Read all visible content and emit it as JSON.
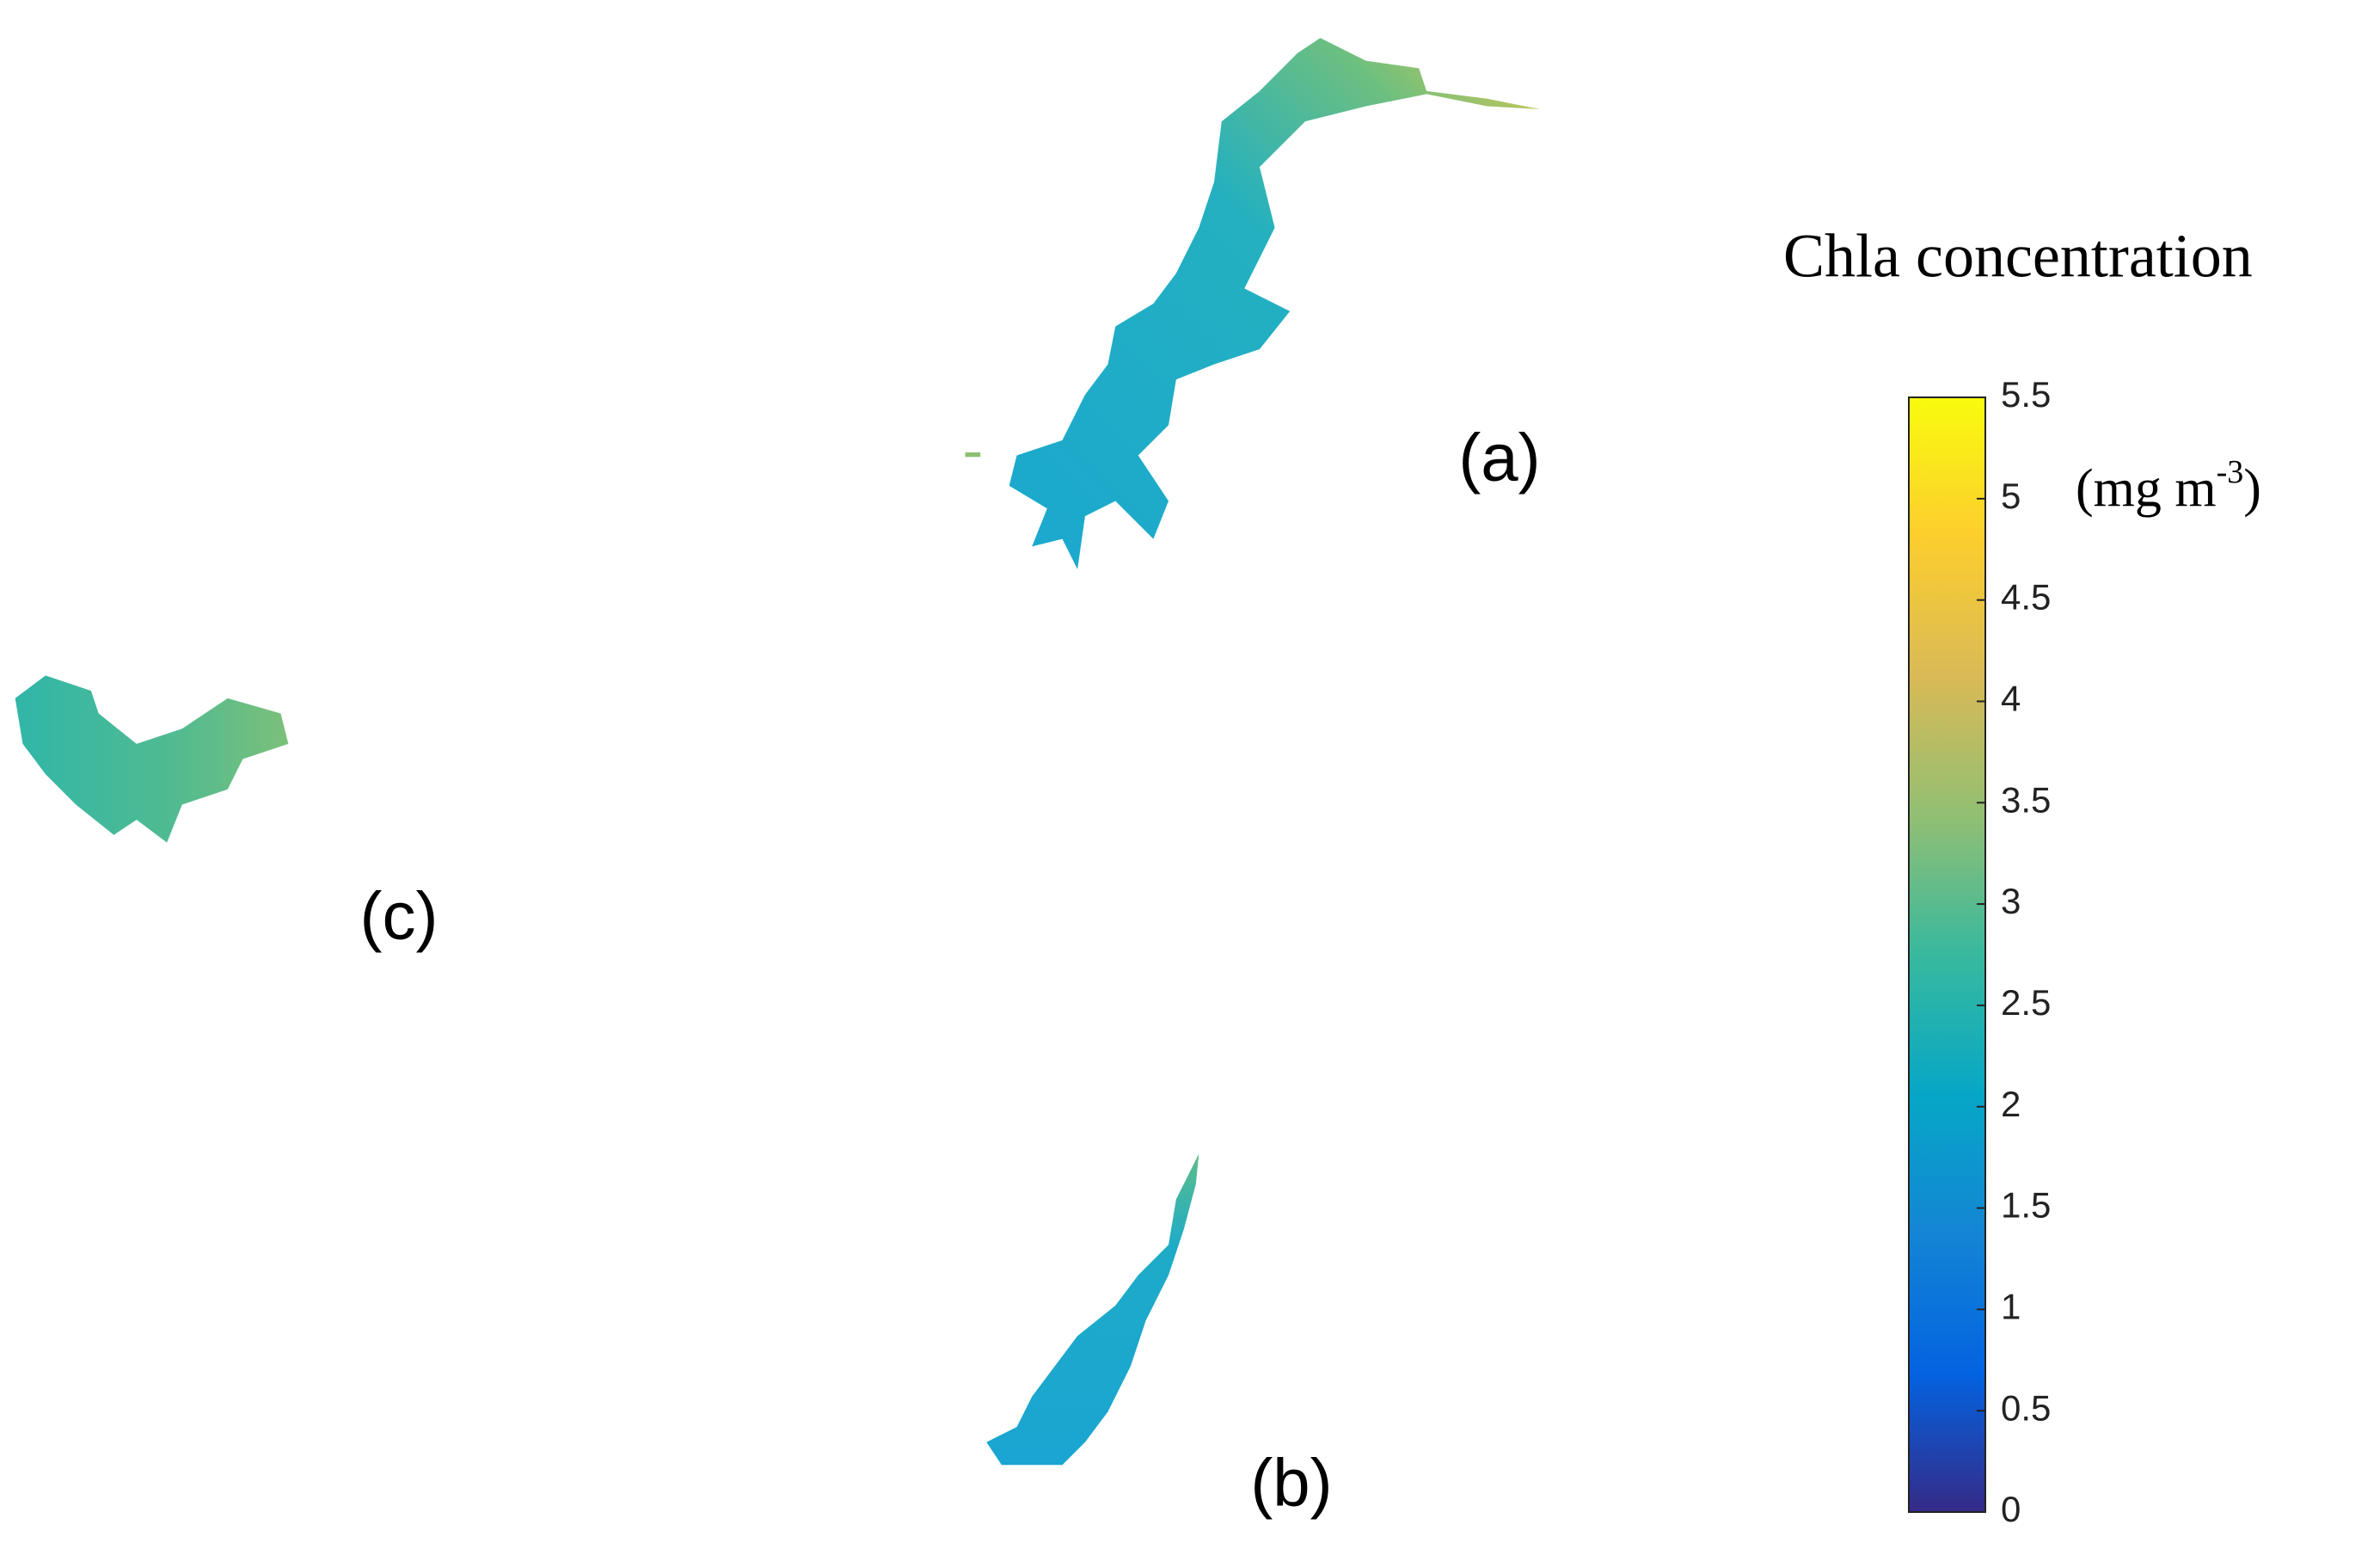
{
  "map": {
    "labels": [
      "(a)",
      "(b)",
      "(c)"
    ],
    "colorbar": {
      "title": "Chla concentration",
      "unit": [
        "(mg m",
        "-3",
        ")"
      ],
      "lim": [
        0,
        5.5
      ],
      "ticks": [
        0,
        0.5,
        1,
        1.5,
        2,
        2.5,
        3,
        3.5,
        4,
        4.5,
        5,
        5.5
      ],
      "colormap": [
        "#352a87",
        "#0363e1",
        "#1485d4",
        "#06a7c6",
        "#38b99e",
        "#92bf73",
        "#d9ba56",
        "#fcce2e",
        "#f9fb0e"
      ]
    }
  }
}
